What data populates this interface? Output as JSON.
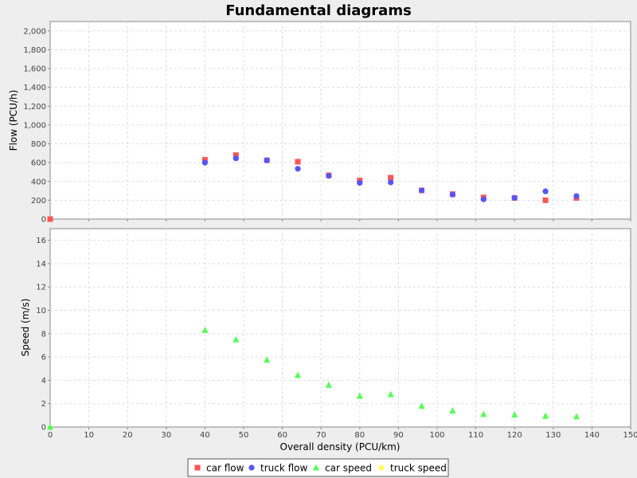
{
  "colors": {
    "car_flow": "#ff5555",
    "truck_flow": "#5555ff",
    "car_speed": "#55ff55",
    "truck_speed": "#ffff55"
  },
  "chart_data": {
    "type": "scatter",
    "title": "Fundamental diagrams",
    "xlabel": "Overall density (PCU/km)",
    "xlim": [
      0,
      150
    ],
    "xticks": [
      0,
      10,
      20,
      30,
      40,
      50,
      60,
      70,
      80,
      90,
      100,
      110,
      120,
      130,
      140,
      150
    ],
    "xtick_labels": [
      "0",
      "10",
      "20",
      "30",
      "40",
      "50",
      "60",
      "70",
      "80",
      "90",
      "100",
      "110",
      "120",
      "130",
      "140",
      "150"
    ],
    "grid": true,
    "legend_placement": "bottom",
    "subplots": [
      {
        "ylabel": "Flow (PCU/h)",
        "ylim": [
          0,
          2100
        ],
        "yticks": [
          0,
          200,
          400,
          600,
          800,
          1000,
          1200,
          1400,
          1600,
          1800,
          2000
        ],
        "ytick_labels": [
          "0",
          "200",
          "400",
          "600",
          "800",
          "1,000",
          "1,200",
          "1,400",
          "1,600",
          "1,800",
          "2,000"
        ],
        "series": [
          {
            "name": "car flow",
            "marker": "square",
            "x": [
              0,
              40,
              48,
              56,
              64,
              72,
              80,
              88,
              96,
              104,
              112,
              120,
              128,
              136
            ],
            "y": [
              0,
              630,
              680,
              625,
              610,
              465,
              410,
              440,
              305,
              265,
              230,
              225,
              200,
              225
            ]
          },
          {
            "name": "truck flow",
            "marker": "circle",
            "x": [
              40,
              48,
              56,
              64,
              72,
              80,
              88,
              96,
              104,
              112,
              120,
              128,
              136
            ],
            "y": [
              600,
              645,
              625,
              535,
              460,
              385,
              390,
              305,
              260,
              210,
              225,
              295,
              245
            ]
          }
        ]
      },
      {
        "ylabel": "Speed (m/s)",
        "ylim": [
          0,
          17
        ],
        "yticks": [
          0,
          2,
          4,
          6,
          8,
          10,
          12,
          14,
          16
        ],
        "ytick_labels": [
          "0",
          "2",
          "4",
          "6",
          "8",
          "10",
          "12",
          "14",
          "16"
        ],
        "series": [
          {
            "name": "car speed",
            "marker": "triangle",
            "x": [
              0,
              40,
              48,
              56,
              64,
              72,
              80,
              88,
              96,
              104,
              112,
              120,
              128,
              136
            ],
            "y": [
              0,
              8.3,
              7.5,
              5.75,
              4.45,
              3.6,
              2.65,
              2.8,
              1.8,
              1.4,
              1.1,
              1.05,
              0.95,
              0.9
            ]
          },
          {
            "name": "truck speed",
            "marker": "diamond",
            "x": [],
            "y": []
          }
        ]
      }
    ],
    "legend": [
      {
        "name": "car flow",
        "marker": "square",
        "color_key": "car_flow"
      },
      {
        "name": "truck flow",
        "marker": "circle",
        "color_key": "truck_flow"
      },
      {
        "name": "car speed",
        "marker": "triangle",
        "color_key": "car_speed"
      },
      {
        "name": "truck speed",
        "marker": "diamond",
        "color_key": "truck_speed"
      }
    ]
  }
}
